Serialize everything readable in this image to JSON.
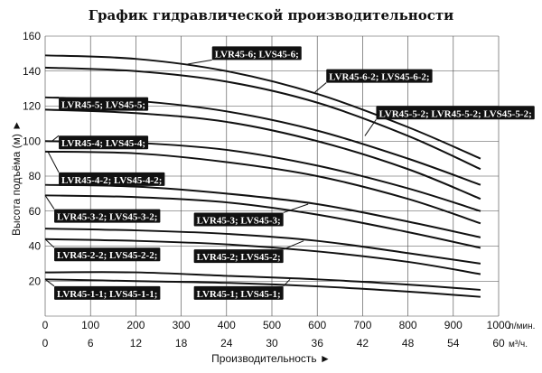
{
  "chart_data": {
    "type": "line",
    "title": "График гидравлической производительности",
    "xlabel": "Производительность ►",
    "ylabel": "Высота подъёма (м) ►",
    "x_unit": "л/мин.",
    "x2_unit": "м³/ч.",
    "xlim": [
      0,
      1000
    ],
    "ylim": [
      0,
      160
    ],
    "grid": true,
    "x_ticks": [
      "0",
      "100",
      "200",
      "300",
      "400",
      "500",
      "600",
      "700",
      "800",
      "900",
      "1000"
    ],
    "x2_ticks": [
      "0",
      "6",
      "12",
      "18",
      "24",
      "30",
      "36",
      "42",
      "48",
      "54",
      "60"
    ],
    "y_ticks": [
      "20",
      "40",
      "60",
      "80",
      "100",
      "120",
      "140",
      "160"
    ],
    "series": [
      {
        "x": [
          0,
          200,
          400,
          600,
          800,
          960
        ],
        "y": [
          149,
          147,
          140,
          127,
          108,
          90
        ]
      },
      {
        "x": [
          0,
          200,
          400,
          600,
          800,
          960
        ],
        "y": [
          142,
          140,
          134,
          122,
          103,
          84
        ]
      },
      {
        "x": [
          0,
          200,
          400,
          600,
          800,
          960
        ],
        "y": [
          125,
          123,
          117,
          106,
          90,
          75
        ]
      },
      {
        "x": [
          0,
          200,
          400,
          600,
          800,
          960
        ],
        "y": [
          118,
          116,
          111,
          100,
          84,
          67
        ]
      },
      {
        "x": [
          0,
          200,
          400,
          600,
          800,
          960
        ],
        "y": [
          100,
          99,
          95,
          86,
          73,
          60
        ]
      },
      {
        "x": [
          0,
          200,
          400,
          600,
          800,
          960
        ],
        "y": [
          94,
          93,
          88,
          80,
          67,
          53
        ]
      },
      {
        "x": [
          0,
          200,
          400,
          600,
          800,
          960
        ],
        "y": [
          75,
          74,
          70,
          64,
          54,
          45
        ]
      },
      {
        "x": [
          0,
          200,
          400,
          600,
          800,
          960
        ],
        "y": [
          69,
          68,
          65,
          58,
          48,
          39
        ]
      },
      {
        "x": [
          0,
          200,
          400,
          600,
          800,
          960
        ],
        "y": [
          50,
          49,
          47,
          43,
          36,
          30
        ]
      },
      {
        "x": [
          0,
          200,
          400,
          600,
          800,
          960
        ],
        "y": [
          44,
          43,
          41,
          37,
          31,
          24
        ]
      },
      {
        "x": [
          0,
          200,
          400,
          600,
          800,
          960
        ],
        "y": [
          25,
          25,
          23,
          21,
          18,
          15
        ]
      },
      {
        "x": [
          0,
          200,
          400,
          600,
          800,
          960
        ],
        "y": [
          21,
          20,
          19,
          17,
          14,
          11
        ]
      }
    ],
    "curve_labels": [
      {
        "text": "LVR45-6; LVS45-6;",
        "at": [
          368,
          150
        ],
        "target": [
          314,
          144
        ]
      },
      {
        "text": "LVR45-6-2; LVS45-6-2;",
        "at": [
          620,
          137
        ],
        "target": [
          595,
          128
        ]
      },
      {
        "text": "LVR45-5; LVS45-5;",
        "at": [
          30,
          121
        ],
        "target": [
          18,
          125
        ]
      },
      {
        "text": "LVR45-5-2; LVR45-5-2; LVS45-5-2;",
        "at": [
          730,
          116
        ],
        "target": [
          705,
          103
        ]
      },
      {
        "text": "LVR45-4; LVS45-4;",
        "at": [
          30,
          99
        ],
        "target": [
          15,
          100
        ]
      },
      {
        "text": "LVR45-4-2; LVS45-4-2;",
        "at": [
          30,
          78
        ],
        "target": [
          6,
          94
        ]
      },
      {
        "text": "LVR45-3-2; LVS45-3-2;",
        "at": [
          20,
          57
        ],
        "target": [
          0,
          69
        ]
      },
      {
        "text": "LVR45-3; LVS45-3;",
        "at": [
          328,
          55
        ],
        "target": [
          580,
          64
        ]
      },
      {
        "text": "LVR45-2-2; LVS45-2-2;",
        "at": [
          20,
          35
        ],
        "target": [
          0,
          44
        ]
      },
      {
        "text": "LVR45-2; LVS45-2;",
        "at": [
          328,
          34
        ],
        "target": [
          570,
          43
        ]
      },
      {
        "text": "LVR45-1-1; LVS45-1-1;",
        "at": [
          20,
          13
        ],
        "target": [
          0,
          21
        ]
      },
      {
        "text": "LVR45-1; LVS45-1;",
        "at": [
          328,
          13
        ],
        "target": [
          540,
          21
        ]
      }
    ]
  }
}
